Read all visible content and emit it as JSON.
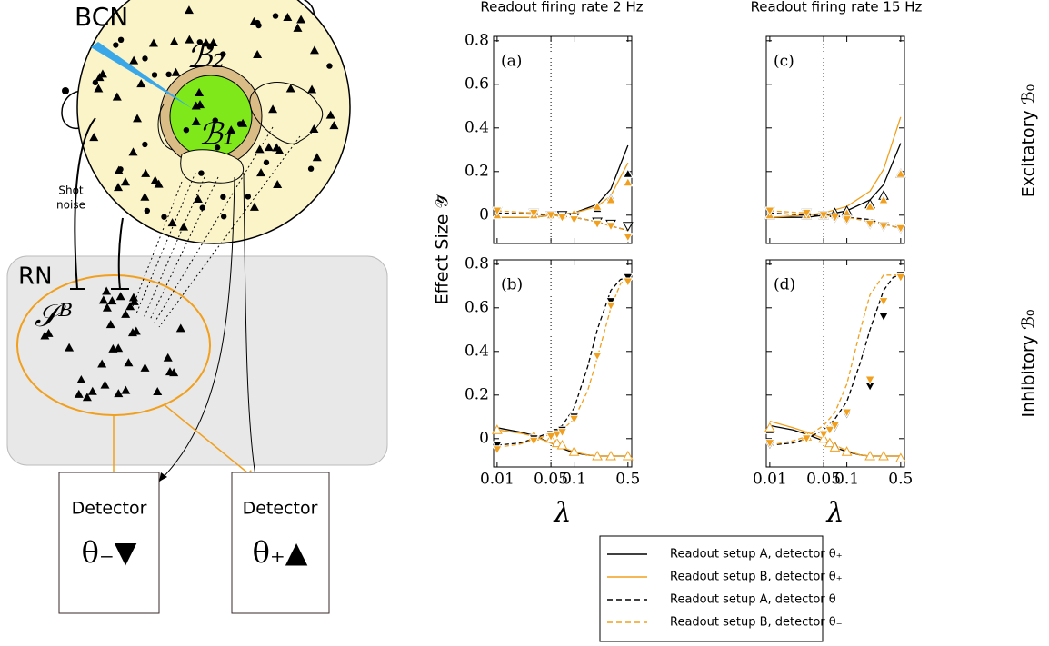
{
  "diagram": {
    "bcn": "BCN",
    "b2": "ℬ₂",
    "b1": "ℬ₁",
    "shot": "Shot",
    "noise": "noise",
    "rn": "RN",
    "sb": "𝒮ᴮ",
    "det_minus": "Detector",
    "sym_minus": "θ₋▼",
    "det_plus": "Detector",
    "sym_plus": "θ₊▲"
  },
  "figure": {
    "ylabel": "Effect Size 𝒴̄",
    "col_titles": [
      "Readout firing rate 2 Hz",
      "Readout firing rate 15 Hz"
    ],
    "row_labels": [
      "Excitatory ℬ₀",
      "Inhibitory ℬ₀"
    ]
  },
  "chart_data": [
    {
      "type": "line",
      "label": "(a)",
      "xscale": "log",
      "xlim": [
        0.009,
        0.56
      ],
      "ylim": [
        -0.13,
        0.82
      ],
      "xticks": [
        0.01,
        0.05,
        0.1,
        0.5
      ],
      "yticks": [
        0,
        0.2,
        0.4,
        0.6,
        0.8
      ],
      "xticklabels": false,
      "yticklabels": true,
      "vline": 0.05,
      "series": [
        {
          "name": "Readout setup A, detector θ₊",
          "color": "#000000",
          "dash": false,
          "x": [
            0.01,
            0.03,
            0.05,
            0.1,
            0.2,
            0.3,
            0.5
          ],
          "values": [
            -0.01,
            -0.01,
            0,
            0.01,
            0.05,
            0.12,
            0.32
          ]
        },
        {
          "name": "Readout setup B, detector θ₊",
          "color": "#f0a01e",
          "dash": false,
          "x": [
            0.01,
            0.03,
            0.05,
            0.1,
            0.2,
            0.3,
            0.5
          ],
          "values": [
            -0.01,
            -0.01,
            0,
            0.01,
            0.04,
            0.09,
            0.24
          ]
        },
        {
          "name": "Readout setup A, detector θ₋",
          "color": "#000000",
          "dash": true,
          "x": [
            0.01,
            0.03,
            0.05,
            0.1,
            0.2,
            0.3,
            0.5
          ],
          "values": [
            0.01,
            0.005,
            0,
            -0.01,
            -0.03,
            -0.05,
            -0.07
          ]
        },
        {
          "name": "Readout setup B, detector θ₋",
          "color": "#f0a01e",
          "dash": true,
          "x": [
            0.01,
            0.03,
            0.05,
            0.1,
            0.2,
            0.3,
            0.5
          ],
          "values": [
            0.02,
            0.01,
            0,
            -0.01,
            -0.03,
            -0.05,
            -0.07
          ]
        }
      ],
      "markers": [
        {
          "color": "#000000",
          "marker": "up",
          "filled": true,
          "x": [
            0.01,
            0.03,
            0.05,
            0.07,
            0.1,
            0.2,
            0.3,
            0.5
          ],
          "values": [
            0,
            0,
            0,
            0,
            0.01,
            0.03,
            0.08,
            0.19
          ]
        },
        {
          "color": "#f0a01e",
          "marker": "up",
          "filled": true,
          "x": [
            0.01,
            0.03,
            0.05,
            0.07,
            0.1,
            0.2,
            0.3,
            0.5
          ],
          "values": [
            0,
            0,
            0,
            0,
            0.01,
            0.04,
            0.07,
            0.15
          ]
        },
        {
          "color": "#000000",
          "marker": "down",
          "filled": false,
          "x": [
            0.01,
            0.03,
            0.05,
            0.07,
            0.1,
            0.2,
            0.3,
            0.5
          ],
          "values": [
            0.02,
            0.01,
            0,
            0,
            -0.01,
            -0.03,
            -0.04,
            -0.05
          ]
        },
        {
          "color": "#f0a01e",
          "marker": "down",
          "filled": true,
          "x": [
            0.01,
            0.03,
            0.05,
            0.07,
            0.1,
            0.2,
            0.3,
            0.5
          ],
          "values": [
            0.02,
            0.01,
            0,
            -0.01,
            -0.02,
            -0.04,
            -0.05,
            -0.1
          ]
        }
      ]
    },
    {
      "type": "line",
      "label": "(b)",
      "xlabel": "λ",
      "xscale": "log",
      "xlim": [
        0.009,
        0.56
      ],
      "ylim": [
        -0.13,
        0.82
      ],
      "xticks": [
        0.01,
        0.05,
        0.1,
        0.5
      ],
      "yticks": [
        0,
        0.2,
        0.4,
        0.6,
        0.8
      ],
      "xticklabels": true,
      "yticklabels": true,
      "vline": 0.05,
      "series": [
        {
          "color": "#000000",
          "dash": false,
          "x": [
            0.01,
            0.02,
            0.03,
            0.05,
            0.07,
            0.1,
            0.15,
            0.2,
            0.3,
            0.4,
            0.5
          ],
          "values": [
            0.05,
            0.03,
            0.015,
            -0.02,
            -0.045,
            -0.065,
            -0.075,
            -0.08,
            -0.08,
            -0.08,
            -0.08
          ]
        },
        {
          "color": "#f0a01e",
          "dash": false,
          "x": [
            0.01,
            0.02,
            0.03,
            0.05,
            0.07,
            0.1,
            0.15,
            0.2,
            0.3,
            0.4,
            0.5
          ],
          "values": [
            0.04,
            0.025,
            0.01,
            -0.02,
            -0.04,
            -0.06,
            -0.075,
            -0.08,
            -0.08,
            -0.08,
            -0.08
          ]
        },
        {
          "color": "#000000",
          "dash": true,
          "x": [
            0.01,
            0.02,
            0.03,
            0.05,
            0.07,
            0.1,
            0.15,
            0.2,
            0.3,
            0.4,
            0.5
          ],
          "values": [
            -0.03,
            -0.02,
            0,
            0.03,
            0.06,
            0.14,
            0.33,
            0.5,
            0.68,
            0.73,
            0.74
          ]
        },
        {
          "color": "#f0a01e",
          "dash": true,
          "x": [
            0.01,
            0.02,
            0.03,
            0.05,
            0.07,
            0.1,
            0.15,
            0.2,
            0.3,
            0.4,
            0.5
          ],
          "values": [
            -0.04,
            -0.025,
            -0.005,
            0.02,
            0.04,
            0.09,
            0.22,
            0.37,
            0.6,
            0.71,
            0.74
          ]
        }
      ],
      "markers": [
        {
          "color": "#000000",
          "marker": "up",
          "filled": true,
          "x": [
            0.01,
            0.03,
            0.05,
            0.06,
            0.07,
            0.1,
            0.2,
            0.3,
            0.5
          ],
          "values": [
            0.04,
            0.01,
            0,
            -0.02,
            -0.03,
            -0.06,
            -0.08,
            -0.08,
            -0.08
          ]
        },
        {
          "color": "#f0a01e",
          "marker": "up",
          "filled": false,
          "x": [
            0.01,
            0.03,
            0.05,
            0.06,
            0.07,
            0.1,
            0.2,
            0.3,
            0.5
          ],
          "values": [
            0.04,
            0.01,
            0,
            -0.02,
            -0.03,
            -0.06,
            -0.08,
            -0.08,
            -0.08
          ]
        },
        {
          "color": "#000000",
          "marker": "down",
          "filled": true,
          "x": [
            0.01,
            0.03,
            0.05,
            0.06,
            0.07,
            0.1,
            0.2,
            0.3,
            0.5
          ],
          "values": [
            -0.03,
            0,
            0.02,
            0.03,
            0.04,
            0.1,
            0.38,
            0.63,
            0.74
          ]
        },
        {
          "color": "#f0a01e",
          "marker": "down",
          "filled": true,
          "x": [
            0.01,
            0.03,
            0.05,
            0.06,
            0.07,
            0.1,
            0.2,
            0.3,
            0.5
          ],
          "values": [
            -0.05,
            -0.01,
            0.01,
            0.02,
            0.03,
            0.09,
            0.38,
            0.61,
            0.72
          ]
        }
      ]
    },
    {
      "type": "line",
      "label": "(c)",
      "xscale": "log",
      "xlim": [
        0.009,
        0.56
      ],
      "ylim": [
        -0.13,
        0.82
      ],
      "xticks": [
        0.01,
        0.05,
        0.1,
        0.5
      ],
      "yticks": [
        0,
        0.2,
        0.4,
        0.6,
        0.8
      ],
      "xticklabels": false,
      "yticklabels": false,
      "vline": 0.05,
      "series": [
        {
          "color": "#000000",
          "dash": false,
          "x": [
            0.01,
            0.03,
            0.05,
            0.1,
            0.2,
            0.3,
            0.5
          ],
          "values": [
            -0.01,
            -0.01,
            0,
            0.02,
            0.07,
            0.14,
            0.33
          ]
        },
        {
          "color": "#f0a01e",
          "dash": false,
          "x": [
            0.01,
            0.03,
            0.05,
            0.1,
            0.2,
            0.3,
            0.5
          ],
          "values": [
            -0.01,
            0,
            0.01,
            0.04,
            0.11,
            0.21,
            0.45
          ]
        },
        {
          "color": "#000000",
          "dash": true,
          "x": [
            0.01,
            0.03,
            0.05,
            0.1,
            0.2,
            0.3,
            0.5
          ],
          "values": [
            0.01,
            0,
            0,
            -0.01,
            -0.02,
            -0.04,
            -0.06
          ]
        },
        {
          "color": "#f0a01e",
          "dash": true,
          "x": [
            0.01,
            0.03,
            0.05,
            0.1,
            0.2,
            0.3,
            0.5
          ],
          "values": [
            0.02,
            0.01,
            0,
            -0.01,
            -0.03,
            -0.04,
            -0.06
          ]
        }
      ],
      "markers": [
        {
          "color": "#000000",
          "marker": "up",
          "filled": false,
          "x": [
            0.01,
            0.03,
            0.05,
            0.07,
            0.1,
            0.2,
            0.3,
            0.5
          ],
          "values": [
            0,
            0,
            0,
            0.01,
            0.02,
            0.05,
            0.09,
            0.19
          ]
        },
        {
          "color": "#f0a01e",
          "marker": "up",
          "filled": true,
          "x": [
            0.01,
            0.03,
            0.05,
            0.07,
            0.1,
            0.2,
            0.3,
            0.5
          ],
          "values": [
            0,
            0,
            0,
            0,
            0.01,
            0.04,
            0.07,
            0.19
          ]
        },
        {
          "color": "#000000",
          "marker": "down",
          "filled": false,
          "x": [
            0.01,
            0.03,
            0.05,
            0.07,
            0.1,
            0.2,
            0.3,
            0.5
          ],
          "values": [
            0.02,
            0.01,
            0,
            -0.01,
            -0.02,
            -0.04,
            -0.05,
            -0.06
          ]
        },
        {
          "color": "#f0a01e",
          "marker": "down",
          "filled": true,
          "x": [
            0.01,
            0.03,
            0.05,
            0.07,
            0.1,
            0.2,
            0.3,
            0.5
          ],
          "values": [
            0.02,
            0.01,
            0,
            -0.01,
            -0.02,
            -0.04,
            -0.05,
            -0.06
          ]
        }
      ]
    },
    {
      "type": "line",
      "label": "(d)",
      "xlabel": "λ",
      "xscale": "log",
      "xlim": [
        0.009,
        0.56
      ],
      "ylim": [
        -0.13,
        0.82
      ],
      "xticks": [
        0.01,
        0.05,
        0.1,
        0.5
      ],
      "yticks": [
        0,
        0.2,
        0.4,
        0.6,
        0.8
      ],
      "xticklabels": true,
      "yticklabels": false,
      "vline": 0.05,
      "series": [
        {
          "color": "#000000",
          "dash": false,
          "x": [
            0.01,
            0.02,
            0.03,
            0.05,
            0.07,
            0.1,
            0.15,
            0.2,
            0.3,
            0.4,
            0.5
          ],
          "values": [
            0.06,
            0.04,
            0.02,
            -0.01,
            -0.04,
            -0.06,
            -0.075,
            -0.08,
            -0.08,
            -0.08,
            -0.08
          ]
        },
        {
          "color": "#f0a01e",
          "dash": false,
          "x": [
            0.01,
            0.02,
            0.03,
            0.05,
            0.07,
            0.1,
            0.15,
            0.2,
            0.3,
            0.4,
            0.5
          ],
          "values": [
            0.08,
            0.05,
            0.03,
            0,
            -0.03,
            -0.055,
            -0.075,
            -0.08,
            -0.08,
            -0.08,
            -0.08
          ]
        },
        {
          "color": "#000000",
          "dash": true,
          "x": [
            0.01,
            0.02,
            0.03,
            0.05,
            0.07,
            0.1,
            0.15,
            0.2,
            0.3,
            0.4,
            0.5
          ],
          "values": [
            -0.03,
            -0.02,
            0,
            0.04,
            0.09,
            0.17,
            0.35,
            0.5,
            0.68,
            0.74,
            0.75
          ]
        },
        {
          "color": "#f0a01e",
          "dash": true,
          "x": [
            0.01,
            0.02,
            0.03,
            0.05,
            0.07,
            0.1,
            0.15,
            0.2,
            0.3,
            0.4,
            0.5
          ],
          "values": [
            -0.03,
            -0.01,
            0.01,
            0.06,
            0.12,
            0.25,
            0.5,
            0.66,
            0.75,
            0.75,
            0.75
          ]
        }
      ],
      "markers": [
        {
          "color": "#000000",
          "marker": "up",
          "filled": true,
          "x": [
            0.01,
            0.03,
            0.05,
            0.06,
            0.07,
            0.1,
            0.2,
            0.3,
            0.5
          ],
          "values": [
            0.04,
            0.01,
            0,
            -0.02,
            -0.03,
            -0.06,
            -0.08,
            -0.08,
            -0.09
          ]
        },
        {
          "color": "#f0a01e",
          "marker": "up",
          "filled": false,
          "x": [
            0.01,
            0.03,
            0.05,
            0.06,
            0.07,
            0.1,
            0.2,
            0.3,
            0.5
          ],
          "values": [
            0.05,
            0.01,
            0,
            -0.02,
            -0.04,
            -0.06,
            -0.08,
            -0.08,
            -0.09
          ]
        },
        {
          "color": "#000000",
          "marker": "down",
          "filled": true,
          "x": [
            0.01,
            0.03,
            0.05,
            0.06,
            0.07,
            0.1,
            0.2,
            0.3,
            0.5
          ],
          "values": [
            -0.03,
            0,
            0.02,
            0.04,
            0.05,
            0.11,
            0.24,
            0.56,
            0.75
          ]
        },
        {
          "color": "#f0a01e",
          "marker": "down",
          "filled": true,
          "x": [
            0.01,
            0.03,
            0.05,
            0.06,
            0.07,
            0.1,
            0.2,
            0.3,
            0.5
          ],
          "values": [
            -0.02,
            0,
            0.02,
            0.04,
            0.06,
            0.12,
            0.27,
            0.63,
            0.74
          ]
        }
      ]
    }
  ]
}
